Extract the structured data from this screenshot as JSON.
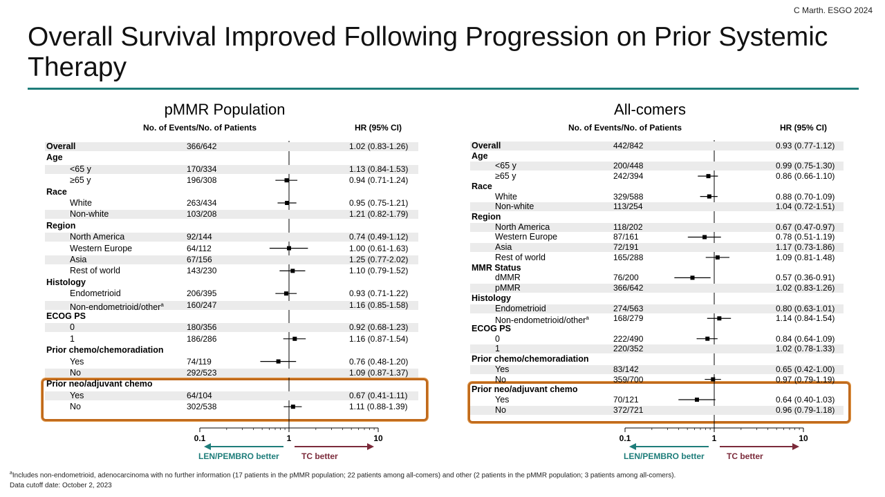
{
  "header": {
    "citation": "C Marth.  ESGO 2024",
    "title": "Overall Survival Improved Following Progression on Prior Systemic Therapy",
    "accent_color": "#1e7d7a"
  },
  "column_headers": {
    "events": "No. of Events/No. of Patients",
    "hr": "HR (95% CI)"
  },
  "axis": {
    "ticks": [
      "0.1",
      "1",
      "10"
    ],
    "left_label": "LEN/PEMBRO better",
    "right_label": "TC better",
    "left_color": "#1e7d7a",
    "right_color": "#7b2a3a"
  },
  "highlight_color": "#c06a1c",
  "footnotes": {
    "note_marker": "a",
    "note_text": "Includes non-endometrioid,  adenocarcinoma with no further information  (17 patients  in the pMMR population;  22 patients  among all-comers)  and other (2 patients  in the pMMR population;  3 patients  among  all-comers).",
    "cutoff": "Data cutoff date: October 2, 2023"
  },
  "chart_data": [
    {
      "type": "forest",
      "title": "pMMR Population",
      "x_scale": "log",
      "xlim": [
        0.1,
        10
      ],
      "reference_line": 1,
      "rows": [
        {
          "label": "Overall",
          "kind": "overall",
          "n": "366/642",
          "hr_text": "1.02 (0.83-1.26)",
          "hr": 1.02,
          "lo": 0.83,
          "hi": 1.26
        },
        {
          "label": "Age",
          "kind": "category"
        },
        {
          "label": "<65 y",
          "kind": "sub",
          "n": "170/334",
          "hr_text": "1.13 (0.84-1.53)",
          "hr": 1.13,
          "lo": 0.84,
          "hi": 1.53
        },
        {
          "label": "≥65 y",
          "kind": "sub",
          "n": "196/308",
          "hr_text": "0.94 (0.71-1.24)",
          "hr": 0.94,
          "lo": 0.71,
          "hi": 1.24
        },
        {
          "label": "Race",
          "kind": "category"
        },
        {
          "label": "White",
          "kind": "sub",
          "n": "263/434",
          "hr_text": "0.95 (0.75-1.21)",
          "hr": 0.95,
          "lo": 0.75,
          "hi": 1.21
        },
        {
          "label": "Non-white",
          "kind": "sub",
          "n": "103/208",
          "hr_text": "1.21 (0.82-1.79)",
          "hr": 1.21,
          "lo": 0.82,
          "hi": 1.79
        },
        {
          "label": "Region",
          "kind": "category"
        },
        {
          "label": "North America",
          "kind": "sub",
          "n": "92/144",
          "hr_text": "0.74 (0.49-1.12)",
          "hr": 0.74,
          "lo": 0.49,
          "hi": 1.12
        },
        {
          "label": "Western Europe",
          "kind": "sub",
          "n": "64/112",
          "hr_text": "1.00 (0.61-1.63)",
          "hr": 1.0,
          "lo": 0.61,
          "hi": 1.63
        },
        {
          "label": "Asia",
          "kind": "sub",
          "n": "67/156",
          "hr_text": "1.25 (0.77-2.02)",
          "hr": 1.25,
          "lo": 0.77,
          "hi": 2.02
        },
        {
          "label": "Rest of world",
          "kind": "sub",
          "n": "143/230",
          "hr_text": "1.10 (0.79-1.52)",
          "hr": 1.1,
          "lo": 0.79,
          "hi": 1.52
        },
        {
          "label": "Histology",
          "kind": "category"
        },
        {
          "label": "Endometrioid",
          "kind": "sub",
          "n": "206/395",
          "hr_text": "0.93 (0.71-1.22)",
          "hr": 0.93,
          "lo": 0.71,
          "hi": 1.22
        },
        {
          "label": "Non-endometrioid/other",
          "sup": "a",
          "kind": "sub",
          "n": "160/247",
          "hr_text": "1.16 (0.85-1.58)",
          "hr": 1.16,
          "lo": 0.85,
          "hi": 1.58
        },
        {
          "label": "ECOG PS",
          "kind": "category"
        },
        {
          "label": "0",
          "kind": "sub",
          "n": "180/356",
          "hr_text": "0.92 (0.68-1.23)",
          "hr": 0.92,
          "lo": 0.68,
          "hi": 1.23
        },
        {
          "label": "1",
          "kind": "sub",
          "n": "186/286",
          "hr_text": "1.16 (0.87-1.54)",
          "hr": 1.16,
          "lo": 0.87,
          "hi": 1.54
        },
        {
          "label": "Prior chemo/chemoradiation",
          "kind": "category"
        },
        {
          "label": "Yes",
          "kind": "sub",
          "n": "74/119",
          "hr_text": "0.76 (0.48-1.20)",
          "hr": 0.76,
          "lo": 0.48,
          "hi": 1.2
        },
        {
          "label": "No",
          "kind": "sub",
          "n": "292/523",
          "hr_text": "1.09 (0.87-1.37)",
          "hr": 1.09,
          "lo": 0.87,
          "hi": 1.37
        },
        {
          "label": "Prior neo/adjuvant chemo",
          "kind": "category",
          "highlight": true
        },
        {
          "label": "Yes",
          "kind": "sub",
          "n": "64/104",
          "hr_text": "0.67 (0.41-1.11)",
          "hr": 0.67,
          "lo": 0.41,
          "hi": 1.11,
          "highlight": true
        },
        {
          "label": "No",
          "kind": "sub",
          "n": "302/538",
          "hr_text": "1.11 (0.88-1.39)",
          "hr": 1.11,
          "lo": 0.88,
          "hi": 1.39,
          "highlight": true
        }
      ]
    },
    {
      "type": "forest",
      "title": "All-comers",
      "x_scale": "log",
      "xlim": [
        0.1,
        10
      ],
      "reference_line": 1,
      "rows": [
        {
          "label": "Overall",
          "kind": "overall",
          "n": "442/842",
          "hr_text": "0.93 (0.77-1.12)",
          "hr": 0.93,
          "lo": 0.77,
          "hi": 1.12
        },
        {
          "label": "Age",
          "kind": "category"
        },
        {
          "label": "<65 y",
          "kind": "sub",
          "n": "200/448",
          "hr_text": "0.99 (0.75-1.30)",
          "hr": 0.99,
          "lo": 0.75,
          "hi": 1.3
        },
        {
          "label": "≥65 y",
          "kind": "sub",
          "n": "242/394",
          "hr_text": "0.86 (0.66-1.10)",
          "hr": 0.86,
          "lo": 0.66,
          "hi": 1.1
        },
        {
          "label": "Race",
          "kind": "category"
        },
        {
          "label": "White",
          "kind": "sub",
          "n": "329/588",
          "hr_text": "0.88 (0.70-1.09)",
          "hr": 0.88,
          "lo": 0.7,
          "hi": 1.09
        },
        {
          "label": "Non-white",
          "kind": "sub",
          "n": "113/254",
          "hr_text": "1.04 (0.72-1.51)",
          "hr": 1.04,
          "lo": 0.72,
          "hi": 1.51
        },
        {
          "label": "Region",
          "kind": "category"
        },
        {
          "label": "North America",
          "kind": "sub",
          "n": "118/202",
          "hr_text": "0.67 (0.47-0.97)",
          "hr": 0.67,
          "lo": 0.47,
          "hi": 0.97
        },
        {
          "label": "Western Europe",
          "kind": "sub",
          "n": "87/161",
          "hr_text": "0.78 (0.51-1.19)",
          "hr": 0.78,
          "lo": 0.51,
          "hi": 1.19
        },
        {
          "label": "Asia",
          "kind": "sub",
          "n": "72/191",
          "hr_text": "1.17 (0.73-1.86)",
          "hr": 1.17,
          "lo": 0.73,
          "hi": 1.86
        },
        {
          "label": "Rest of world",
          "kind": "sub",
          "n": "165/288",
          "hr_text": "1.09 (0.81-1.48)",
          "hr": 1.09,
          "lo": 0.81,
          "hi": 1.48
        },
        {
          "label": "MMR Status",
          "kind": "category"
        },
        {
          "label": "dMMR",
          "kind": "sub",
          "n": "76/200",
          "hr_text": "0.57 (0.36-0.91)",
          "hr": 0.57,
          "lo": 0.36,
          "hi": 0.91
        },
        {
          "label": "pMMR",
          "kind": "sub",
          "n": "366/642",
          "hr_text": "1.02 (0.83-1.26)",
          "hr": 1.02,
          "lo": 0.83,
          "hi": 1.26
        },
        {
          "label": "Histology",
          "kind": "category"
        },
        {
          "label": "Endometrioid",
          "kind": "sub",
          "n": "274/563",
          "hr_text": "0.80 (0.63-1.01)",
          "hr": 0.8,
          "lo": 0.63,
          "hi": 1.01
        },
        {
          "label": "Non-endometrioid/other",
          "sup": "a",
          "kind": "sub",
          "n": "168/279",
          "hr_text": "1.14 (0.84-1.54)",
          "hr": 1.14,
          "lo": 0.84,
          "hi": 1.54
        },
        {
          "label": "ECOG PS",
          "kind": "category"
        },
        {
          "label": "0",
          "kind": "sub",
          "n": "222/490",
          "hr_text": "0.84 (0.64-1.09)",
          "hr": 0.84,
          "lo": 0.64,
          "hi": 1.09
        },
        {
          "label": "1",
          "kind": "sub",
          "n": "220/352",
          "hr_text": "1.02 (0.78-1.33)",
          "hr": 1.02,
          "lo": 0.78,
          "hi": 1.33
        },
        {
          "label": "Prior chemo/chemoradiation",
          "kind": "category"
        },
        {
          "label": "Yes",
          "kind": "sub",
          "n": "83/142",
          "hr_text": "0.65 (0.42-1.00)",
          "hr": 0.65,
          "lo": 0.42,
          "hi": 1.0
        },
        {
          "label": "No",
          "kind": "sub",
          "n": "359/700",
          "hr_text": "0.97 (0.79-1.19)",
          "hr": 0.97,
          "lo": 0.79,
          "hi": 1.19
        },
        {
          "label": "Prior neo/adjuvant chemo",
          "kind": "category",
          "highlight": true
        },
        {
          "label": "Yes",
          "kind": "sub",
          "n": "70/121",
          "hr_text": "0.64 (0.40-1.03)",
          "hr": 0.64,
          "lo": 0.4,
          "hi": 1.03,
          "highlight": true
        },
        {
          "label": "No",
          "kind": "sub",
          "n": "372/721",
          "hr_text": "0.96 (0.79-1.18)",
          "hr": 0.96,
          "lo": 0.79,
          "hi": 1.18,
          "highlight": true
        }
      ]
    }
  ]
}
